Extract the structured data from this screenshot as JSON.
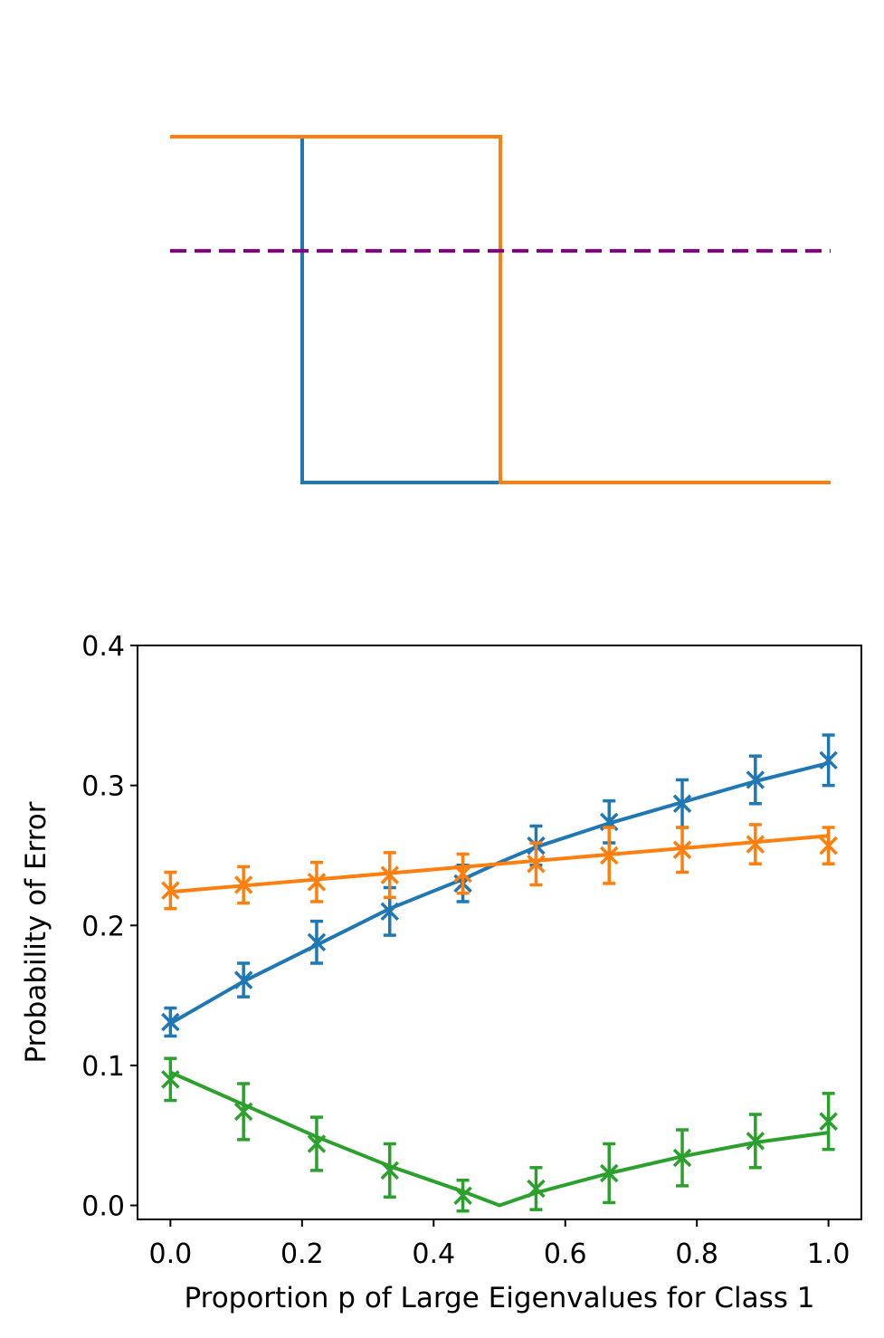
{
  "chart_data": [
    {
      "type": "line",
      "title": "",
      "xlabel": "",
      "ylabel": "",
      "xlim": [
        0,
        1
      ],
      "ylim": [
        0,
        1
      ],
      "axes_visible": false,
      "series": [
        {
          "name": "step-blue",
          "color": "#1f77b4",
          "style": "solid",
          "x": [
            0,
            0.2,
            0.2,
            1.0
          ],
          "y": [
            1,
            1,
            0,
            0
          ]
        },
        {
          "name": "step-orange",
          "color": "#ff7f0e",
          "style": "solid",
          "x": [
            0,
            0.5,
            0.5,
            1.0
          ],
          "y": [
            1,
            1,
            0,
            0
          ]
        },
        {
          "name": "threshold",
          "color": "#800080",
          "style": "dashed",
          "x": [
            0,
            1.0
          ],
          "y": [
            0.67,
            0.67
          ]
        }
      ]
    },
    {
      "type": "line",
      "title": "",
      "xlabel": "Proportion p of Large Eigenvalues for Class 1",
      "ylabel": "Probability of Error",
      "xlim": [
        -0.05,
        1.05
      ],
      "ylim": [
        -0.01,
        0.4
      ],
      "xticks": [
        "0.0",
        "0.2",
        "0.4",
        "0.6",
        "0.8",
        "1.0"
      ],
      "yticks": [
        "0.0",
        "0.1",
        "0.2",
        "0.3",
        "0.4"
      ],
      "series": [
        {
          "name": "blue",
          "color": "#1f77b4",
          "curve_x": [
            0,
            0.1111,
            0.2222,
            0.3333,
            0.4444,
            0.5,
            0.5556,
            0.6667,
            0.7778,
            0.8889,
            1.0
          ],
          "curve_y": [
            0.13,
            0.16,
            0.186,
            0.212,
            0.233,
            0.245,
            0.256,
            0.273,
            0.288,
            0.303,
            0.316
          ],
          "points": [
            {
              "x": 0.0,
              "y": 0.131,
              "err": 0.01
            },
            {
              "x": 0.1111,
              "y": 0.161,
              "err": 0.012
            },
            {
              "x": 0.2222,
              "y": 0.188,
              "err": 0.015
            },
            {
              "x": 0.3333,
              "y": 0.21,
              "err": 0.017
            },
            {
              "x": 0.4444,
              "y": 0.23,
              "err": 0.013
            },
            {
              "x": 0.5556,
              "y": 0.257,
              "err": 0.014
            },
            {
              "x": 0.6667,
              "y": 0.274,
              "err": 0.015
            },
            {
              "x": 0.7778,
              "y": 0.287,
              "err": 0.017
            },
            {
              "x": 0.8889,
              "y": 0.304,
              "err": 0.017
            },
            {
              "x": 1.0,
              "y": 0.318,
              "err": 0.018
            }
          ]
        },
        {
          "name": "orange",
          "color": "#ff7f0e",
          "curve_x": [
            0,
            1.0
          ],
          "curve_y": [
            0.224,
            0.264
          ],
          "points": [
            {
              "x": 0.0,
              "y": 0.225,
              "err": 0.013
            },
            {
              "x": 0.1111,
              "y": 0.229,
              "err": 0.013
            },
            {
              "x": 0.2222,
              "y": 0.231,
              "err": 0.014
            },
            {
              "x": 0.3333,
              "y": 0.236,
              "err": 0.016
            },
            {
              "x": 0.4444,
              "y": 0.237,
              "err": 0.014
            },
            {
              "x": 0.5556,
              "y": 0.244,
              "err": 0.015
            },
            {
              "x": 0.6667,
              "y": 0.25,
              "err": 0.02
            },
            {
              "x": 0.7778,
              "y": 0.254,
              "err": 0.016
            },
            {
              "x": 0.8889,
              "y": 0.258,
              "err": 0.014
            },
            {
              "x": 1.0,
              "y": 0.257,
              "err": 0.013
            }
          ]
        },
        {
          "name": "green",
          "color": "#2ca02c",
          "curve_x": [
            0,
            0.1111,
            0.2222,
            0.3333,
            0.4444,
            0.5,
            0.5556,
            0.6667,
            0.7778,
            0.8889,
            1.0
          ],
          "curve_y": [
            0.095,
            0.072,
            0.049,
            0.028,
            0.01,
            0.0,
            0.009,
            0.023,
            0.035,
            0.045,
            0.052
          ],
          "points": [
            {
              "x": 0.0,
              "y": 0.09,
              "err": 0.015
            },
            {
              "x": 0.1111,
              "y": 0.067,
              "err": 0.02
            },
            {
              "x": 0.2222,
              "y": 0.044,
              "err": 0.019
            },
            {
              "x": 0.3333,
              "y": 0.025,
              "err": 0.019
            },
            {
              "x": 0.4444,
              "y": 0.007,
              "err": 0.011
            },
            {
              "x": 0.5556,
              "y": 0.012,
              "err": 0.015
            },
            {
              "x": 0.6667,
              "y": 0.023,
              "err": 0.021
            },
            {
              "x": 0.7778,
              "y": 0.034,
              "err": 0.02
            },
            {
              "x": 0.8889,
              "y": 0.046,
              "err": 0.019
            },
            {
              "x": 1.0,
              "y": 0.06,
              "err": 0.02
            }
          ]
        }
      ]
    }
  ]
}
